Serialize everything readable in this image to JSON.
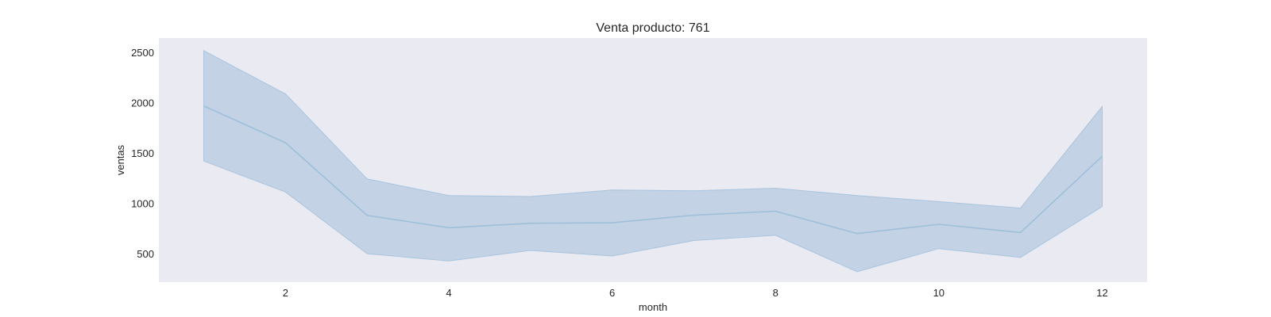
{
  "chart_data": {
    "type": "line",
    "title": "Venta producto: 761",
    "xlabel": "month",
    "ylabel": "ventas",
    "xlim": [
      0.45,
      12.55
    ],
    "ylim": [
      215,
      2640
    ],
    "xticks": [
      2,
      4,
      6,
      8,
      10,
      12
    ],
    "yticks": [
      500,
      1000,
      1500,
      2000,
      2500
    ],
    "grid": false,
    "legend": "none",
    "colors": {
      "plot_background": "#eaeaf2",
      "line": "#9ebfd9",
      "band": "#c3d3e5",
      "band_edge": "#a9c4de"
    },
    "series": [
      {
        "x": [
          1,
          2,
          3,
          4,
          5,
          6,
          7,
          8,
          9,
          10,
          11,
          12
        ],
        "values": [
          1965,
          1600,
          878,
          755,
          800,
          805,
          880,
          920,
          698,
          790,
          708,
          1465
        ],
        "ci_upper": [
          2515,
          2085,
          1240,
          1075,
          1065,
          1130,
          1122,
          1148,
          1075,
          1015,
          950,
          1960
        ],
        "ci_lower": [
          1418,
          1110,
          498,
          425,
          530,
          475,
          628,
          680,
          318,
          548,
          460,
          965
        ]
      }
    ]
  }
}
